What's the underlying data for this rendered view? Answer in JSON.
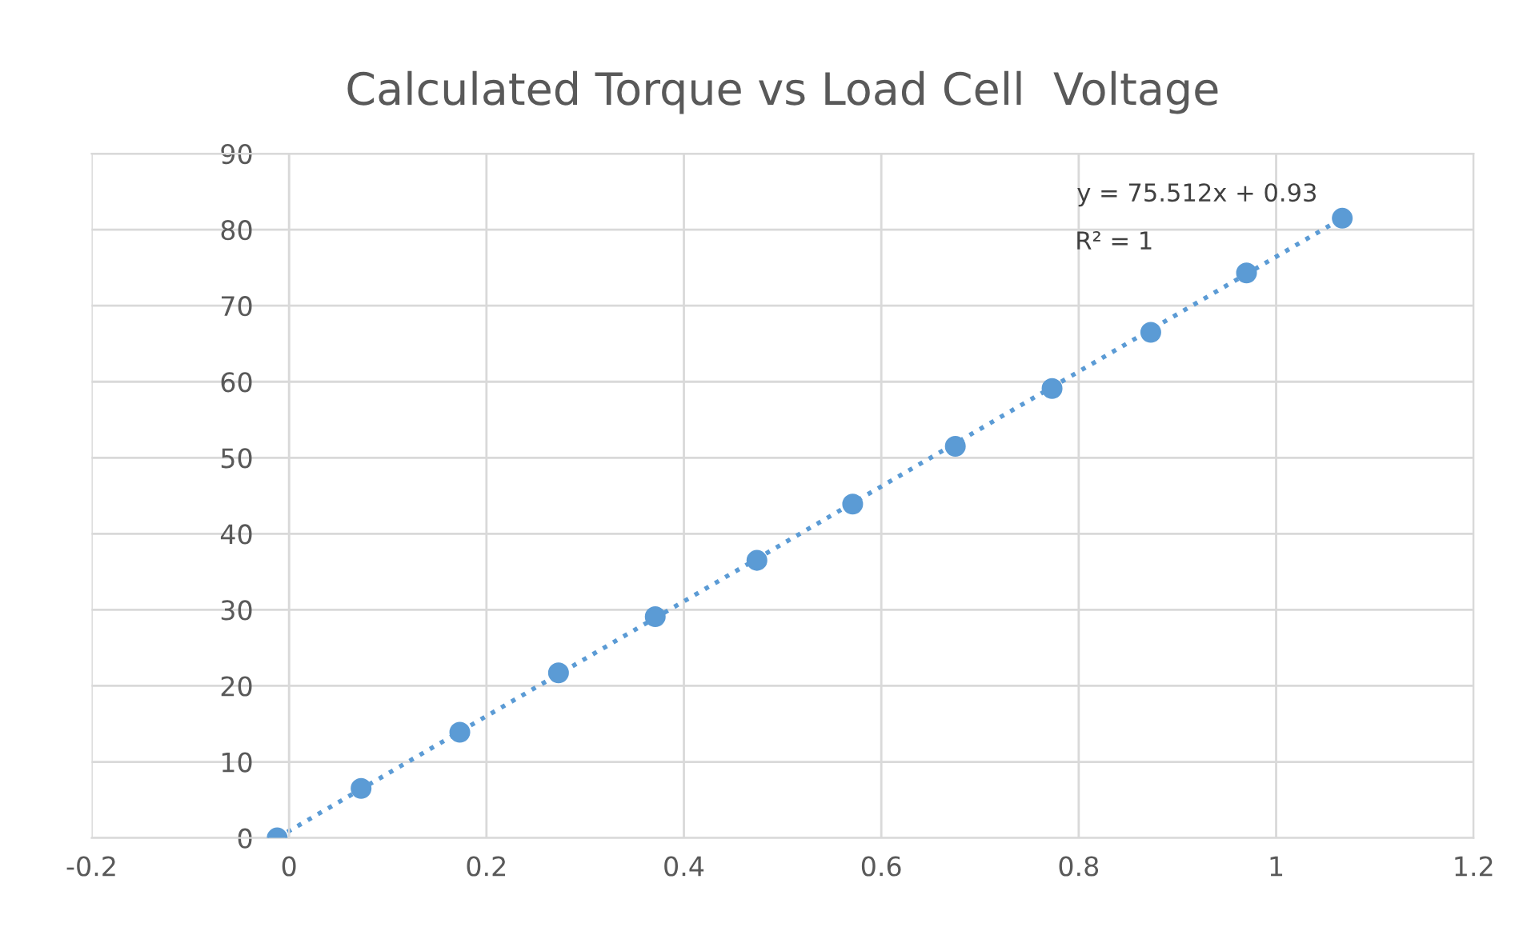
{
  "chart_data": {
    "type": "scatter",
    "title": "Calculated Torque vs Load Cell  Voltage",
    "xlim": [
      -0.2,
      1.2
    ],
    "xticks": [
      -0.2,
      0,
      0.2,
      0.4,
      0.6,
      0.8,
      1,
      1.2
    ],
    "ylim": [
      0,
      90
    ],
    "yticks": [
      0,
      10,
      20,
      30,
      40,
      50,
      60,
      70,
      80,
      90
    ],
    "grid": true,
    "series": [
      {
        "type": "scatter",
        "marker": "circle",
        "color": "#5b9bd5",
        "x": [
          -0.012,
          0.073,
          0.173,
          0.273,
          0.371,
          0.474,
          0.571,
          0.675,
          0.773,
          0.873,
          0.97,
          1.067
        ],
        "values": [
          0,
          6.5,
          13.9,
          21.7,
          29.1,
          36.5,
          43.9,
          51.5,
          59.1,
          66.5,
          74.3,
          81.5
        ]
      },
      {
        "type": "line",
        "color": "#5b9bd5",
        "line_style": "dotted",
        "marker": "none",
        "x": [
          -0.012,
          1.067
        ],
        "values": [
          0.0,
          81.5
        ]
      }
    ],
    "annotations": [
      "y = 75.512x + 0.93",
      "R² = 1"
    ]
  }
}
